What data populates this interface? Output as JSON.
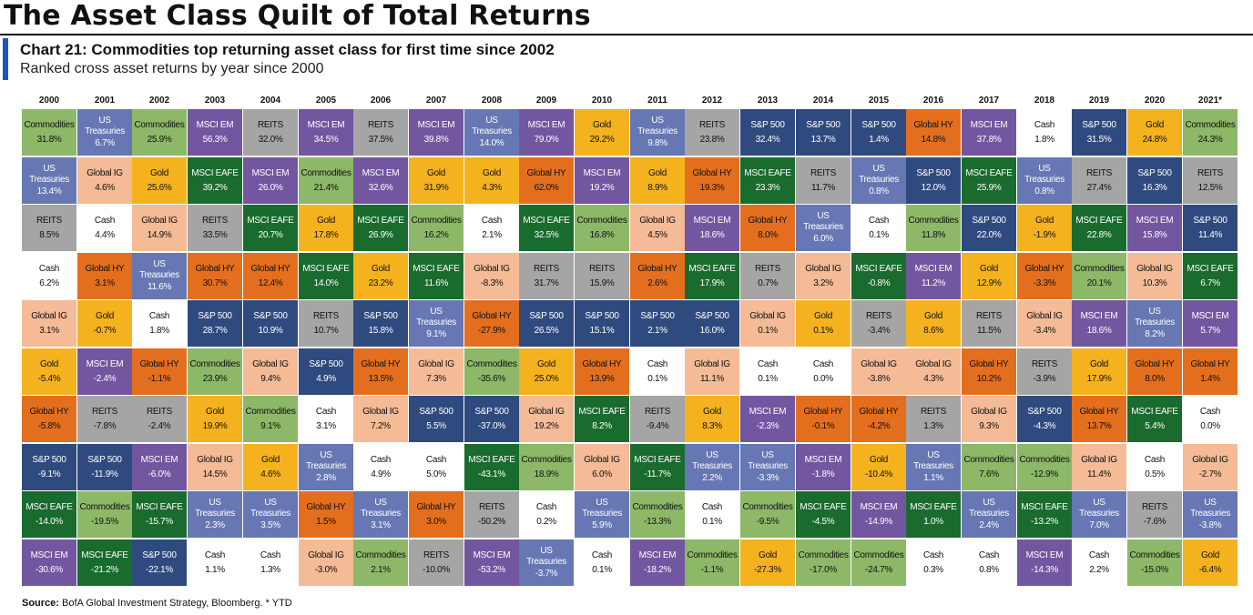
{
  "header": {
    "main_title": "The Asset Class Quilt of Total Returns",
    "chart_title": "Chart 21: Commodities top returning asset class for first time since 2002",
    "subtitle": "Ranked cross asset returns by year since 2000"
  },
  "source": {
    "label": "Source:",
    "text": "BofA Global Investment Strategy, Bloomberg. * YTD"
  },
  "colors": {
    "Commodities": {
      "bg": "#8cb867",
      "fg": "#111111"
    },
    "US Treasuries": {
      "bg": "#6677b4",
      "fg": "#ffffff"
    },
    "REITS": {
      "bg": "#a5a5a5",
      "fg": "#111111"
    },
    "Cash": {
      "bg": "#ffffff",
      "fg": "#111111"
    },
    "Global IG": {
      "bg": "#f4bb96",
      "fg": "#111111"
    },
    "Gold": {
      "bg": "#f5b21f",
      "fg": "#111111"
    },
    "MSCI EAFE": {
      "bg": "#1a6b2e",
      "fg": "#ffffff"
    },
    "S&P 500": {
      "bg": "#2f4a7f",
      "fg": "#ffffff"
    },
    "Global HY": {
      "bg": "#e36f1e",
      "fg": "#111111"
    },
    "MSCI EM": {
      "bg": "#7356a0",
      "fg": "#ffffff"
    }
  },
  "chart_data": {
    "type": "table",
    "title": "Chart 21: Commodities top returning asset class for first time since 2002",
    "subtitle": "Ranked cross asset returns by year since 2000",
    "columns": [
      {
        "year": "2000",
        "cells": [
          [
            "Commodities",
            "31.8%"
          ],
          [
            "US Treasuries",
            "13.4%"
          ],
          [
            "REITS",
            "8.5%"
          ],
          [
            "Cash",
            "6.2%"
          ],
          [
            "Global IG",
            "3.1%"
          ],
          [
            "Gold",
            "-5.4%"
          ],
          [
            "Global HY",
            "-5.8%"
          ],
          [
            "S&P 500",
            "-9.1%"
          ],
          [
            "MSCI EAFE",
            "-14.0%"
          ],
          [
            "MSCI EM",
            "-30.6%"
          ]
        ]
      },
      {
        "year": "2001",
        "cells": [
          [
            "US Treasuries",
            "6.7%"
          ],
          [
            "Global IG",
            "4.6%"
          ],
          [
            "Cash",
            "4.4%"
          ],
          [
            "Global HY",
            "3.1%"
          ],
          [
            "Gold",
            "-0.7%"
          ],
          [
            "MSCI EM",
            "-2.4%"
          ],
          [
            "REITS",
            "-7.8%"
          ],
          [
            "S&P 500",
            "-11.9%"
          ],
          [
            "Commodities",
            "-19.5%"
          ],
          [
            "MSCI EAFE",
            "-21.2%"
          ]
        ]
      },
      {
        "year": "2002",
        "cells": [
          [
            "Commodities",
            "25.9%"
          ],
          [
            "Gold",
            "25.6%"
          ],
          [
            "Global IG",
            "14.9%"
          ],
          [
            "US Treasuries",
            "11.6%"
          ],
          [
            "Cash",
            "1.8%"
          ],
          [
            "Global HY",
            "-1.1%"
          ],
          [
            "REITS",
            "-2.4%"
          ],
          [
            "MSCI EM",
            "-6.0%"
          ],
          [
            "MSCI EAFE",
            "-15.7%"
          ],
          [
            "S&P 500",
            "-22.1%"
          ]
        ]
      },
      {
        "year": "2003",
        "cells": [
          [
            "MSCI EM",
            "56.3%"
          ],
          [
            "MSCI EAFE",
            "39.2%"
          ],
          [
            "REITS",
            "33.5%"
          ],
          [
            "Global HY",
            "30.7%"
          ],
          [
            "S&P 500",
            "28.7%"
          ],
          [
            "Commodities",
            "23.9%"
          ],
          [
            "Gold",
            "19.9%"
          ],
          [
            "Global IG",
            "14.5%"
          ],
          [
            "US Treasuries",
            "2.3%"
          ],
          [
            "Cash",
            "1.1%"
          ]
        ]
      },
      {
        "year": "2004",
        "cells": [
          [
            "REITS",
            "32.0%"
          ],
          [
            "MSCI EM",
            "26.0%"
          ],
          [
            "MSCI EAFE",
            "20.7%"
          ],
          [
            "Global HY",
            "12.4%"
          ],
          [
            "S&P 500",
            "10.9%"
          ],
          [
            "Global IG",
            "9.4%"
          ],
          [
            "Commodities",
            "9.1%"
          ],
          [
            "Gold",
            "4.6%"
          ],
          [
            "US Treasuries",
            "3.5%"
          ],
          [
            "Cash",
            "1.3%"
          ]
        ]
      },
      {
        "year": "2005",
        "cells": [
          [
            "MSCI EM",
            "34.5%"
          ],
          [
            "Commodities",
            "21.4%"
          ],
          [
            "Gold",
            "17.8%"
          ],
          [
            "MSCI EAFE",
            "14.0%"
          ],
          [
            "REITS",
            "10.7%"
          ],
          [
            "S&P 500",
            "4.9%"
          ],
          [
            "Cash",
            "3.1%"
          ],
          [
            "US Treasuries",
            "2.8%"
          ],
          [
            "Global HY",
            "1.5%"
          ],
          [
            "Global IG",
            "-3.0%"
          ]
        ]
      },
      {
        "year": "2006",
        "cells": [
          [
            "REITS",
            "37.5%"
          ],
          [
            "MSCI EM",
            "32.6%"
          ],
          [
            "MSCI EAFE",
            "26.9%"
          ],
          [
            "Gold",
            "23.2%"
          ],
          [
            "S&P 500",
            "15.8%"
          ],
          [
            "Global HY",
            "13.5%"
          ],
          [
            "Global IG",
            "7.2%"
          ],
          [
            "Cash",
            "4.9%"
          ],
          [
            "US Treasuries",
            "3.1%"
          ],
          [
            "Commodities",
            "2.1%"
          ]
        ]
      },
      {
        "year": "2007",
        "cells": [
          [
            "MSCI EM",
            "39.8%"
          ],
          [
            "Gold",
            "31.9%"
          ],
          [
            "Commodities",
            "16.2%"
          ],
          [
            "MSCI EAFE",
            "11.6%"
          ],
          [
            "US Treasuries",
            "9.1%"
          ],
          [
            "Global IG",
            "7.3%"
          ],
          [
            "S&P 500",
            "5.5%"
          ],
          [
            "Cash",
            "5.0%"
          ],
          [
            "Global HY",
            "3.0%"
          ],
          [
            "REITS",
            "-10.0%"
          ]
        ]
      },
      {
        "year": "2008",
        "cells": [
          [
            "US Treasuries",
            "14.0%"
          ],
          [
            "Gold",
            "4.3%"
          ],
          [
            "Cash",
            "2.1%"
          ],
          [
            "Global IG",
            "-8.3%"
          ],
          [
            "Global HY",
            "-27.9%"
          ],
          [
            "Commodities",
            "-35.6%"
          ],
          [
            "S&P 500",
            "-37.0%"
          ],
          [
            "MSCI EAFE",
            "-43.1%"
          ],
          [
            "REITS",
            "-50.2%"
          ],
          [
            "MSCI EM",
            "-53.2%"
          ]
        ]
      },
      {
        "year": "2009",
        "cells": [
          [
            "MSCI EM",
            "79.0%"
          ],
          [
            "Global HY",
            "62.0%"
          ],
          [
            "MSCI EAFE",
            "32.5%"
          ],
          [
            "REITS",
            "31.7%"
          ],
          [
            "S&P 500",
            "26.5%"
          ],
          [
            "Gold",
            "25.0%"
          ],
          [
            "Global IG",
            "19.2%"
          ],
          [
            "Commodities",
            "18.9%"
          ],
          [
            "Cash",
            "0.2%"
          ],
          [
            "US Treasuries",
            "-3.7%"
          ]
        ]
      },
      {
        "year": "2010",
        "cells": [
          [
            "Gold",
            "29.2%"
          ],
          [
            "MSCI EM",
            "19.2%"
          ],
          [
            "Commodities",
            "16.8%"
          ],
          [
            "REITS",
            "15.9%"
          ],
          [
            "S&P 500",
            "15.1%"
          ],
          [
            "Global HY",
            "13.9%"
          ],
          [
            "MSCI EAFE",
            "8.2%"
          ],
          [
            "Global IG",
            "6.0%"
          ],
          [
            "US Treasuries",
            "5.9%"
          ],
          [
            "Cash",
            "0.1%"
          ]
        ]
      },
      {
        "year": "2011",
        "cells": [
          [
            "US Treasuries",
            "9.8%"
          ],
          [
            "Gold",
            "8.9%"
          ],
          [
            "Global IG",
            "4.5%"
          ],
          [
            "Global HY",
            "2.6%"
          ],
          [
            "S&P 500",
            "2.1%"
          ],
          [
            "Cash",
            "0.1%"
          ],
          [
            "REITS",
            "-9.4%"
          ],
          [
            "MSCI EAFE",
            "-11.7%"
          ],
          [
            "Commodities",
            "-13.3%"
          ],
          [
            "MSCI EM",
            "-18.2%"
          ]
        ]
      },
      {
        "year": "2012",
        "cells": [
          [
            "REITS",
            "23.8%"
          ],
          [
            "Global HY",
            "19.3%"
          ],
          [
            "MSCI EM",
            "18.6%"
          ],
          [
            "MSCI EAFE",
            "17.9%"
          ],
          [
            "S&P 500",
            "16.0%"
          ],
          [
            "Global IG",
            "11.1%"
          ],
          [
            "Gold",
            "8.3%"
          ],
          [
            "US Treasuries",
            "2.2%"
          ],
          [
            "Cash",
            "0.1%"
          ],
          [
            "Commodities",
            "-1.1%"
          ]
        ]
      },
      {
        "year": "2013",
        "cells": [
          [
            "S&P 500",
            "32.4%"
          ],
          [
            "MSCI EAFE",
            "23.3%"
          ],
          [
            "Global HY",
            "8.0%"
          ],
          [
            "REITS",
            "0.7%"
          ],
          [
            "Global IG",
            "0.1%"
          ],
          [
            "Cash",
            "0.1%"
          ],
          [
            "MSCI EM",
            "-2.3%"
          ],
          [
            "US Treasuries",
            "-3.3%"
          ],
          [
            "Commodities",
            "-9.5%"
          ],
          [
            "Gold",
            "-27.3%"
          ]
        ]
      },
      {
        "year": "2014",
        "cells": [
          [
            "S&P 500",
            "13.7%"
          ],
          [
            "REITS",
            "11.7%"
          ],
          [
            "US Treasuries",
            "6.0%"
          ],
          [
            "Global IG",
            "3.2%"
          ],
          [
            "Gold",
            "0.1%"
          ],
          [
            "Cash",
            "0.0%"
          ],
          [
            "Global HY",
            "-0.1%"
          ],
          [
            "MSCI EM",
            "-1.8%"
          ],
          [
            "MSCI EAFE",
            "-4.5%"
          ],
          [
            "Commodities",
            "-17.0%"
          ]
        ]
      },
      {
        "year": "2015",
        "cells": [
          [
            "S&P 500",
            "1.4%"
          ],
          [
            "US Treasuries",
            "0.8%"
          ],
          [
            "Cash",
            "0.1%"
          ],
          [
            "MSCI EAFE",
            "-0.8%"
          ],
          [
            "REITS",
            "-3.4%"
          ],
          [
            "Global IG",
            "-3.8%"
          ],
          [
            "Global HY",
            "-4.2%"
          ],
          [
            "Gold",
            "-10.4%"
          ],
          [
            "MSCI EM",
            "-14.9%"
          ],
          [
            "Commodities",
            "-24.7%"
          ]
        ]
      },
      {
        "year": "2016",
        "cells": [
          [
            "Global HY",
            "14.8%"
          ],
          [
            "S&P 500",
            "12.0%"
          ],
          [
            "Commodities",
            "11.8%"
          ],
          [
            "MSCI EM",
            "11.2%"
          ],
          [
            "Gold",
            "8.6%"
          ],
          [
            "Global IG",
            "4.3%"
          ],
          [
            "REITS",
            "1.3%"
          ],
          [
            "US Treasuries",
            "1.1%"
          ],
          [
            "MSCI EAFE",
            "1.0%"
          ],
          [
            "Cash",
            "0.3%"
          ]
        ]
      },
      {
        "year": "2017",
        "cells": [
          [
            "MSCI EM",
            "37.8%"
          ],
          [
            "MSCI EAFE",
            "25.9%"
          ],
          [
            "S&P 500",
            "22.0%"
          ],
          [
            "Gold",
            "12.9%"
          ],
          [
            "REITS",
            "11.5%"
          ],
          [
            "Global HY",
            "10.2%"
          ],
          [
            "Global IG",
            "9.3%"
          ],
          [
            "Commodities",
            "7.6%"
          ],
          [
            "US Treasuries",
            "2.4%"
          ],
          [
            "Cash",
            "0.8%"
          ]
        ]
      },
      {
        "year": "2018",
        "cells": [
          [
            "Cash",
            "1.8%"
          ],
          [
            "US Treasuries",
            "0.8%"
          ],
          [
            "Gold",
            "-1.9%"
          ],
          [
            "Global HY",
            "-3.3%"
          ],
          [
            "Global IG",
            "-3.4%"
          ],
          [
            "REITS",
            "-3.9%"
          ],
          [
            "S&P 500",
            "-4.3%"
          ],
          [
            "Commodities",
            "-12.9%"
          ],
          [
            "MSCI EAFE",
            "-13.2%"
          ],
          [
            "MSCI EM",
            "-14.3%"
          ]
        ]
      },
      {
        "year": "2019",
        "cells": [
          [
            "S&P 500",
            "31.5%"
          ],
          [
            "REITS",
            "27.4%"
          ],
          [
            "MSCI EAFE",
            "22.8%"
          ],
          [
            "Commodities",
            "20.1%"
          ],
          [
            "MSCI EM",
            "18.6%"
          ],
          [
            "Gold",
            "17.9%"
          ],
          [
            "Global HY",
            "13.7%"
          ],
          [
            "Global IG",
            "11.4%"
          ],
          [
            "US Treasuries",
            "7.0%"
          ],
          [
            "Cash",
            "2.2%"
          ]
        ]
      },
      {
        "year": "2020",
        "cells": [
          [
            "Gold",
            "24.8%"
          ],
          [
            "S&P 500",
            "16.3%"
          ],
          [
            "MSCI EM",
            "15.8%"
          ],
          [
            "Global IG",
            "10.3%"
          ],
          [
            "US Treasuries",
            "8.2%"
          ],
          [
            "Global HY",
            "8.0%"
          ],
          [
            "MSCI EAFE",
            "5.4%"
          ],
          [
            "Cash",
            "0.5%"
          ],
          [
            "REITS",
            "-7.6%"
          ],
          [
            "Commodities",
            "-15.0%"
          ]
        ]
      },
      {
        "year": "2021*",
        "cells": [
          [
            "Commodities",
            "24.3%"
          ],
          [
            "REITS",
            "12.5%"
          ],
          [
            "S&P 500",
            "11.4%"
          ],
          [
            "MSCI EAFE",
            "6.7%"
          ],
          [
            "MSCI EM",
            "5.7%"
          ],
          [
            "Global HY",
            "1.4%"
          ],
          [
            "Cash",
            "0.0%"
          ],
          [
            "Global IG",
            "-2.7%"
          ],
          [
            "US Treasuries",
            "-3.8%"
          ],
          [
            "Gold",
            "-6.4%"
          ]
        ]
      }
    ]
  }
}
